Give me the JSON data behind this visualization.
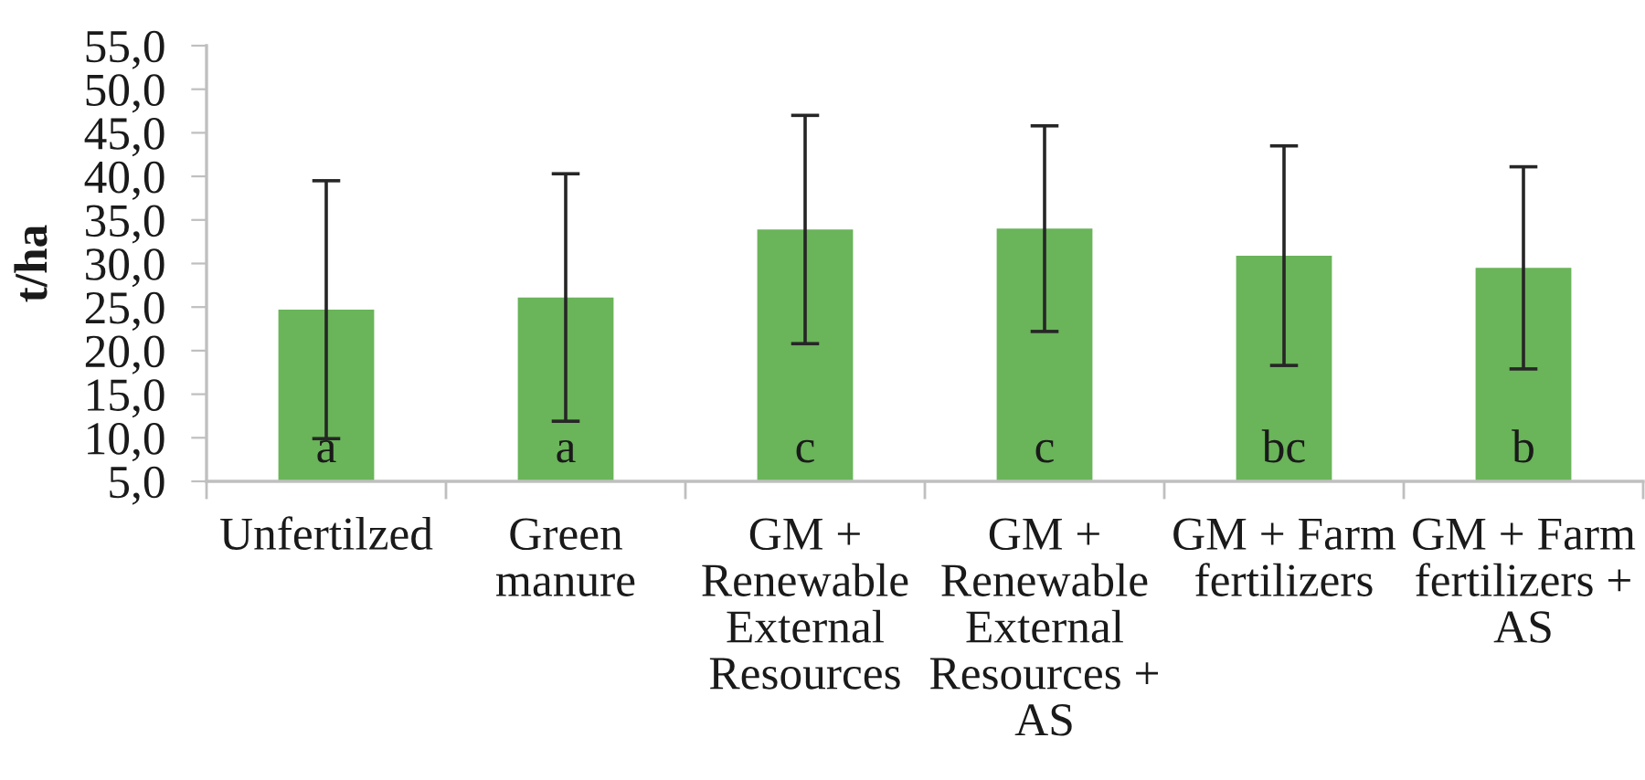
{
  "chart_data": {
    "type": "bar",
    "ylabel": "t/ha",
    "categories": [
      "Unfertilzed",
      "Green manure",
      "GM + Renewable External Resources",
      "GM + Renewable External Resources + AS",
      "GM + Farm fertilizers",
      "GM + Farm fertilizers + AS"
    ],
    "values": [
      24.7,
      26.1,
      33.9,
      34.0,
      30.9,
      29.5
    ],
    "errors": [
      14.8,
      14.2,
      13.1,
      11.8,
      12.6,
      11.6
    ],
    "color": "#6ab45a",
    "ylim": [
      5,
      55
    ],
    "yticks": [
      {
        "value": 5,
        "label": "5,0"
      },
      {
        "value": 10,
        "label": "10,0"
      },
      {
        "value": 15,
        "label": "15,0"
      },
      {
        "value": 20,
        "label": "20,0"
      },
      {
        "value": 25,
        "label": "25,0"
      },
      {
        "value": 30,
        "label": "30,0"
      },
      {
        "value": 35,
        "label": "35,0"
      },
      {
        "value": 40,
        "label": "40,0"
      },
      {
        "value": 45,
        "label": "45,0"
      },
      {
        "value": 50,
        "label": "50,0"
      },
      {
        "value": 55,
        "label": "55,0"
      }
    ],
    "grid": false,
    "annotations": [
      "a",
      "a",
      "c",
      "c",
      "bc",
      "b"
    ]
  }
}
